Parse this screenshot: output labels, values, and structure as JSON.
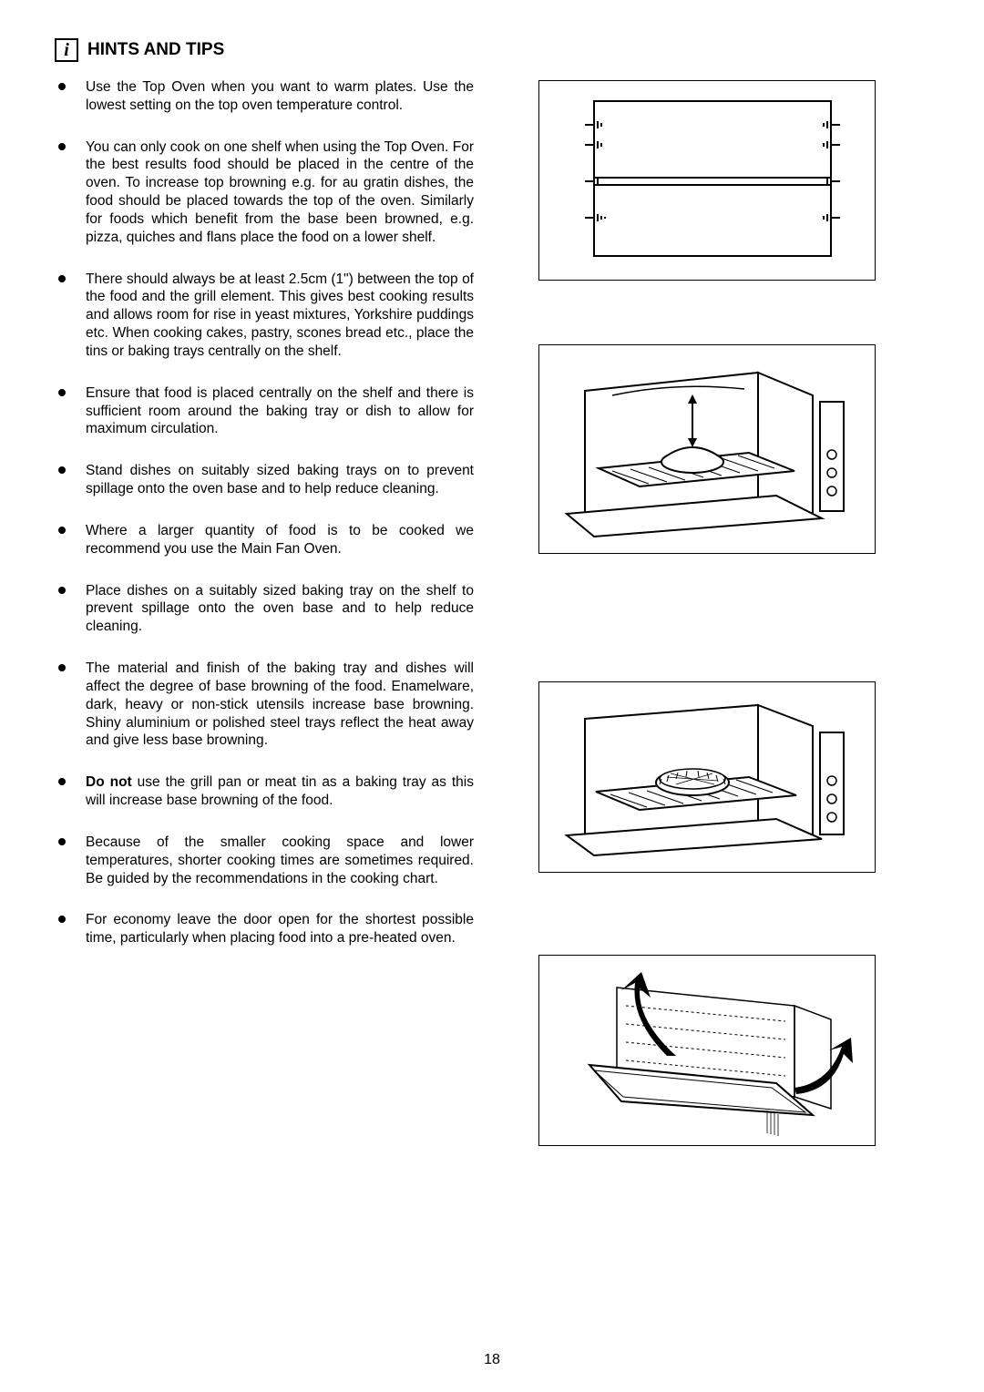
{
  "header": {
    "icon_letter": "i",
    "title": "HINTS AND TIPS"
  },
  "tips": [
    "Use the Top Oven when you want to warm plates.  Use the lowest setting on the top oven temperature control.",
    "You can only cook on one shelf when using the Top Oven.  For the best results food should be placed in the centre of the oven.  To increase top browning e.g. for au gratin dishes, the food should be placed towards the top of the oven. Similarly for foods which benefit from the base been browned, e.g. pizza, quiches and flans place the food on a lower shelf.",
    "There should always be at least 2.5cm (1\") between the top of the food and the grill element. This gives best cooking results and allows room for rise in yeast mixtures, Yorkshire puddings etc. When cooking cakes, pastry, scones bread etc., place the tins or baking trays centrally on the shelf.",
    "Ensure that food is placed centrally on the shelf and there is sufficient room around the baking tray or dish to allow for maximum circulation.",
    "Stand dishes on suitably sized baking trays on to prevent spillage onto the oven base and to help reduce cleaning.",
    "Where a larger quantity of food is to be cooked we recommend you use the Main Fan Oven.",
    "Place dishes on a suitably sized baking tray on the shelf to prevent spillage onto the oven base and to help reduce cleaning.",
    "The material and finish of the baking tray and dishes will affect the degree of base browning of the food.  Enamelware, dark, heavy or non-stick utensils increase base browning.  Shiny aluminium or polished steel trays reflect the heat away and give less base browning.",
    "<span class=\"bold\">Do not</span> use the grill pan or meat tin as a baking tray as this will increase base browning of the food.",
    "Because of the smaller cooking space and lower temperatures, shorter cooking times are sometimes required.  Be guided by the recommendations in the cooking chart.",
    "For economy leave the door open for the shortest possible time, particularly when placing food into a pre-heated oven."
  ],
  "page_number": "18",
  "figures": {
    "fig1": {
      "bg": "#ffffff",
      "stroke": "#000000",
      "desc": "oven-cavity-shelf-positions"
    },
    "fig2": {
      "bg": "#ffffff",
      "stroke": "#000000",
      "desc": "oven-shelf-clearance-arrow"
    },
    "fig3": {
      "bg": "#ffffff",
      "stroke": "#000000",
      "desc": "oven-dish-centered-on-shelf"
    },
    "fig4": {
      "bg": "#ffffff",
      "stroke": "#000000",
      "desc": "oven-door-heat-arrows"
    }
  }
}
